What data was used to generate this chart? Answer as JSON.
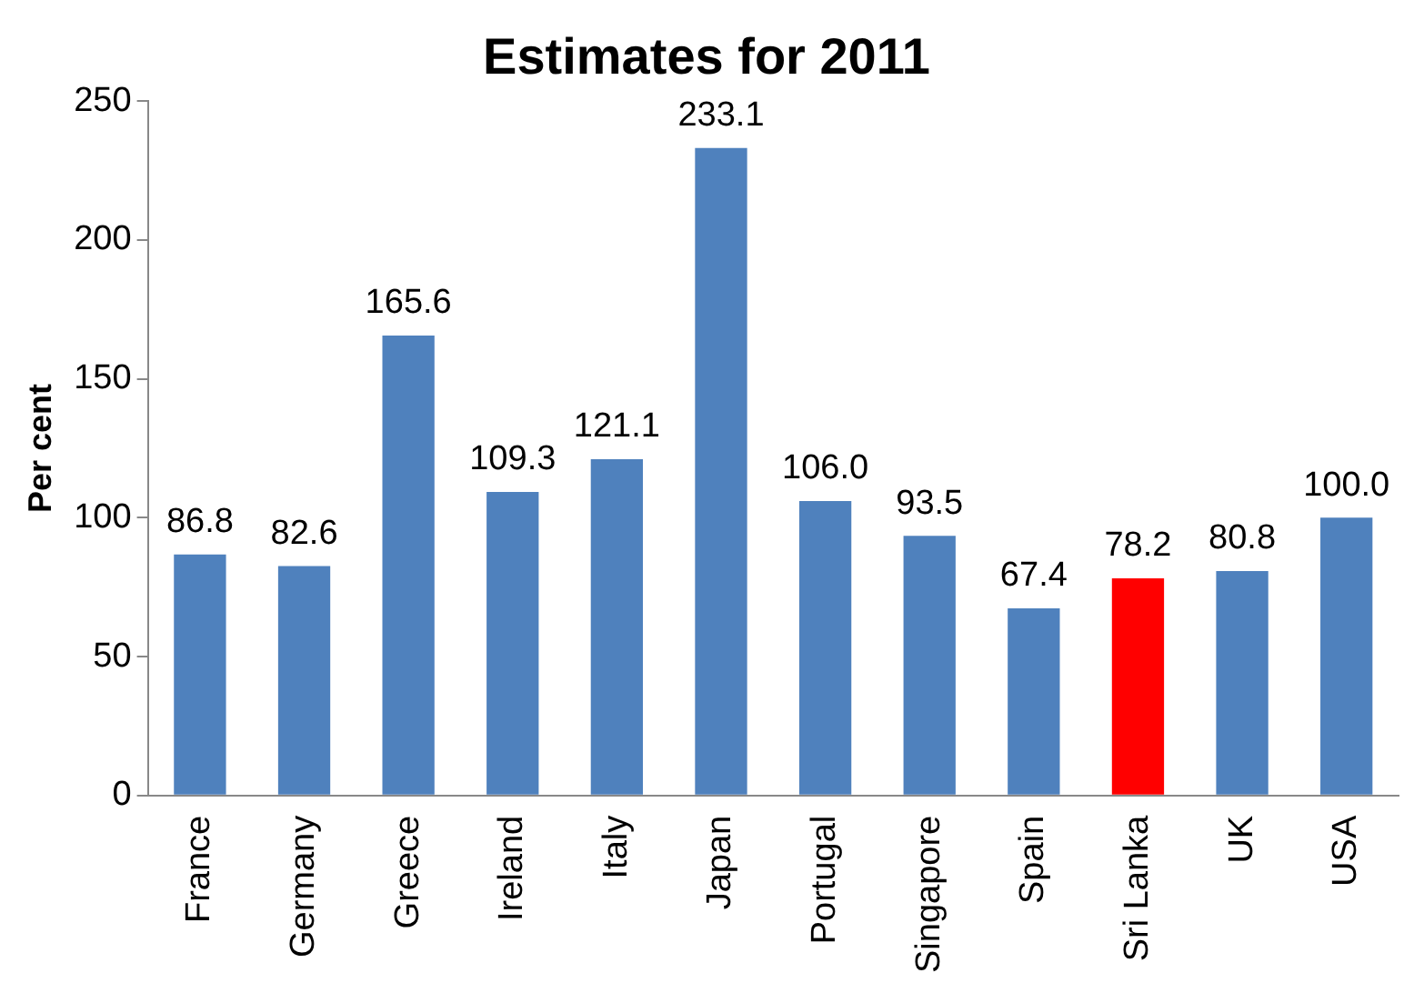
{
  "chart_data": {
    "type": "bar",
    "title": "Estimates for 2011",
    "ylabel": "Per cent",
    "categories": [
      "France",
      "Germany",
      "Greece",
      "Ireland",
      "Italy",
      "Japan",
      "Portugal",
      "Singapore",
      "Spain",
      "Sri Lanka",
      "UK",
      "USA"
    ],
    "values": [
      86.8,
      82.6,
      165.6,
      109.3,
      121.1,
      233.1,
      106.0,
      93.5,
      67.4,
      78.2,
      80.8,
      100.0
    ],
    "colors": [
      "#4f81bd",
      "#4f81bd",
      "#4f81bd",
      "#4f81bd",
      "#4f81bd",
      "#4f81bd",
      "#4f81bd",
      "#4f81bd",
      "#4f81bd",
      "#ff0000",
      "#4f81bd",
      "#4f81bd"
    ],
    "value_labels": [
      "86.8",
      "82.6",
      "165.6",
      "109.3",
      "121.1",
      "233.1",
      "106.0",
      "93.5",
      "67.4",
      "78.2",
      "80.8",
      "100.0"
    ],
    "ylim": [
      0,
      250
    ],
    "yticks": [
      0,
      50,
      100,
      150,
      200,
      250
    ],
    "grid": false,
    "legend": false
  }
}
